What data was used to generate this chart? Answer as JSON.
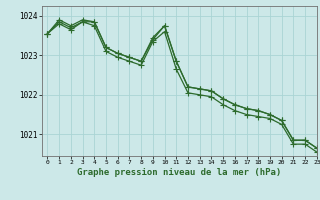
{
  "line1_x": [
    0,
    1,
    2,
    3,
    4,
    5,
    6,
    7,
    8,
    9,
    10,
    11,
    12,
    13,
    14,
    15,
    16,
    17,
    18,
    19,
    20,
    21,
    22,
    23
  ],
  "line1_y": [
    1023.55,
    1023.8,
    1023.65,
    1023.85,
    1023.85,
    1023.2,
    1023.05,
    1022.95,
    1022.85,
    1023.4,
    1023.75,
    1022.85,
    1022.2,
    1022.15,
    1022.1,
    1021.9,
    1021.75,
    1021.65,
    1021.6,
    1021.5,
    1021.35,
    1020.85,
    1020.85,
    1020.65
  ],
  "line2_x": [
    0,
    1,
    2,
    3,
    4,
    5,
    6,
    7,
    8,
    9,
    10,
    11,
    12,
    13,
    14,
    15,
    16,
    17,
    18,
    19,
    20,
    21,
    22,
    23
  ],
  "line2_y": [
    1023.55,
    1023.9,
    1023.75,
    1023.9,
    1023.85,
    1023.2,
    1023.05,
    1022.95,
    1022.85,
    1023.45,
    1023.75,
    1022.85,
    1022.2,
    1022.15,
    1022.1,
    1021.9,
    1021.75,
    1021.65,
    1021.6,
    1021.5,
    1021.35,
    1020.85,
    1020.85,
    1020.65
  ],
  "line3_x": [
    0,
    1,
    2,
    3,
    4,
    5,
    6,
    7,
    8,
    9,
    10,
    11,
    12,
    13,
    14,
    15,
    16,
    17,
    18,
    19,
    20,
    21,
    22,
    23
  ],
  "line3_y": [
    1023.55,
    1023.85,
    1023.7,
    1023.85,
    1023.75,
    1023.1,
    1022.95,
    1022.85,
    1022.75,
    1023.35,
    1023.6,
    1022.65,
    1022.05,
    1022.0,
    1021.95,
    1021.75,
    1021.6,
    1021.5,
    1021.45,
    1021.4,
    1021.25,
    1020.75,
    1020.75,
    1020.55
  ],
  "line_color": "#2d6b2d",
  "bg_color": "#cce8e8",
  "grid_color": "#aad4d4",
  "xlabel": "Graphe pression niveau de la mer (hPa)",
  "ylim": [
    1020.45,
    1024.25
  ],
  "xlim": [
    -0.5,
    23
  ],
  "yticks": [
    1021,
    1022,
    1023,
    1024
  ],
  "xticks": [
    0,
    1,
    2,
    3,
    4,
    5,
    6,
    7,
    8,
    9,
    10,
    11,
    12,
    13,
    14,
    15,
    16,
    17,
    18,
    19,
    20,
    21,
    22,
    23
  ],
  "marker": "+",
  "markersize": 4,
  "linewidth": 0.9
}
